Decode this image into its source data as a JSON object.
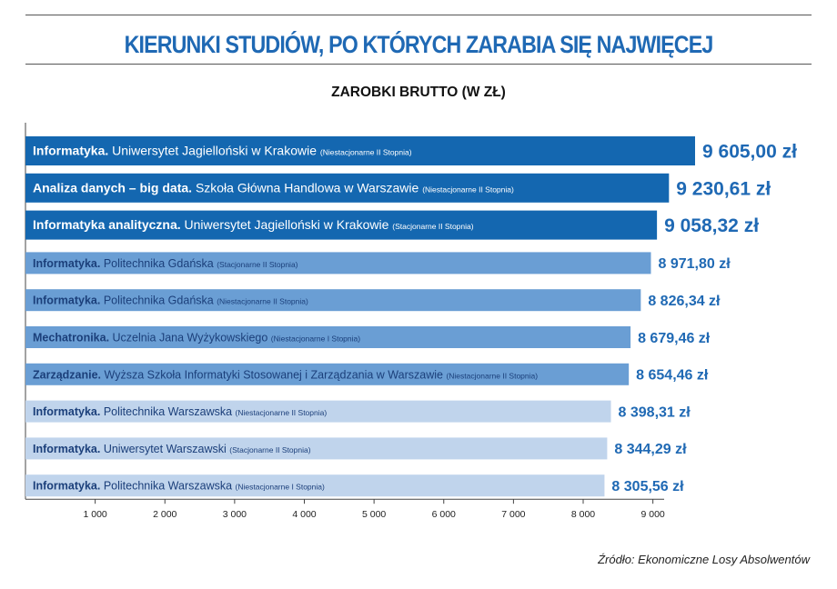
{
  "title": "KIERUNKI STUDIÓW, PO KTÓRYCH ZARABIA SIĘ NAJWIĘCEJ",
  "subtitle": "ZAROBKI BRUTTO (W ZŁ)",
  "source": "Źródło: Ekonomiczne Losy Absolwentów",
  "colors": {
    "title": "#1f69b4",
    "tier1": "#1467b0",
    "tier2": "#6a9ed4",
    "tier3": "#c0d4ec",
    "text_on_light": "#1b3f7a",
    "value": "#1f69b4"
  },
  "chart_data": {
    "type": "bar",
    "orientation": "horizontal",
    "title": "KIERUNKI STUDIÓW, PO KTÓRYCH ZARABIA SIĘ NAJWIĘCEJ",
    "subtitle": "ZAROBKI BRUTTO (W ZŁ)",
    "xlim": [
      0,
      9605
    ],
    "xticks": [
      1000,
      2000,
      3000,
      4000,
      5000,
      6000,
      7000,
      8000,
      9000
    ],
    "xtick_labels": [
      "1 000",
      "2 000",
      "3 000",
      "4 000",
      "5 000",
      "6 000",
      "7 000",
      "8 000",
      "9 000"
    ],
    "grid": false,
    "bars": [
      {
        "field": "Informatyka.",
        "school": "Uniwersytet Jagielloński w Krakowie",
        "mode": "(Niestacjonarne II Stopnia)",
        "value": 9605.0,
        "value_label": "9 605,00 zł",
        "tier": 1
      },
      {
        "field": "Analiza danych – big data.",
        "school": "Szkoła Główna Handlowa w Warszawie",
        "mode": "(Niestacjonarne II Stopnia)",
        "value": 9230.61,
        "value_label": "9 230,61 zł",
        "tier": 1
      },
      {
        "field": "Informatyka analityczna.",
        "school": "Uniwersytet Jagielloński w Krakowie",
        "mode": "(Stacjonarne II Stopnia)",
        "value": 9058.32,
        "value_label": "9 058,32 zł",
        "tier": 1
      },
      {
        "field": "Informatyka.",
        "school": "Politechnika Gdańska",
        "mode": "(Stacjonarne II Stopnia)",
        "value": 8971.8,
        "value_label": "8 971,80 zł",
        "tier": 2
      },
      {
        "field": "Informatyka.",
        "school": "Politechnika Gdańska",
        "mode": "(Niestacjonarne II Stopnia)",
        "value": 8826.34,
        "value_label": "8 826,34 zł",
        "tier": 2
      },
      {
        "field": "Mechatronika.",
        "school": "Uczelnia Jana Wyżykowskiego",
        "mode": "(Niestacjonarne I Stopnia)",
        "value": 8679.46,
        "value_label": "8 679,46 zł",
        "tier": 2
      },
      {
        "field": "Zarządzanie.",
        "school": "Wyższa Szkoła Informatyki Stosowanej i Zarządzania w Warszawie",
        "mode": "(Niestacjonarne II Stopnia)",
        "value": 8654.46,
        "value_label": "8 654,46 zł",
        "tier": 2
      },
      {
        "field": "Informatyka.",
        "school": "Politechnika Warszawska",
        "mode": "(Niestacjonarne II Stopnia)",
        "value": 8398.31,
        "value_label": "8 398,31 zł",
        "tier": 3
      },
      {
        "field": "Informatyka.",
        "school": "Uniwersytet Warszawski",
        "mode": "(Stacjonarne II Stopnia)",
        "value": 8344.29,
        "value_label": "8 344,29 zł",
        "tier": 3
      },
      {
        "field": "Informatyka.",
        "school": "Politechnika Warszawska",
        "mode": "(Niestacjonarne I Stopnia)",
        "value": 8305.56,
        "value_label": "8 305,56 zł",
        "tier": 3
      }
    ]
  }
}
